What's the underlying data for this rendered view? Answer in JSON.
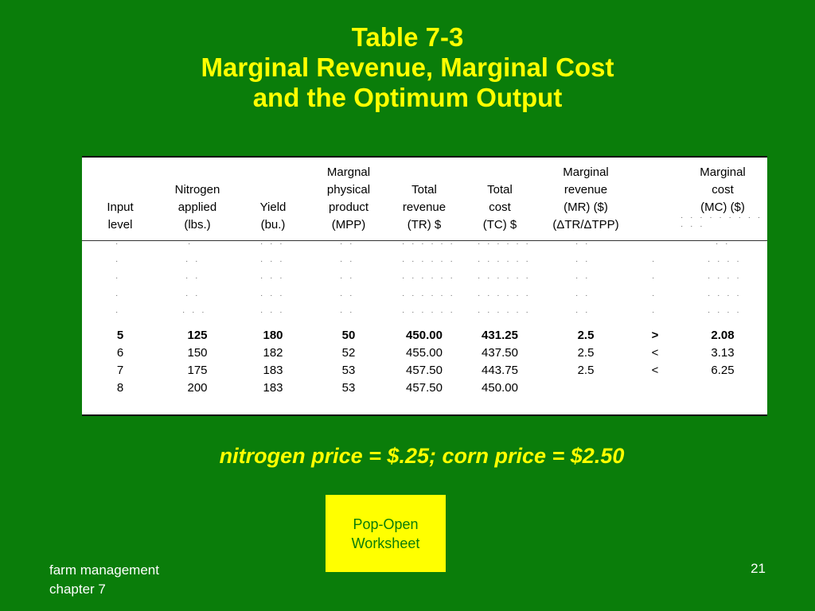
{
  "title": {
    "line1": "Table 7-3",
    "line2": "Marginal Revenue, Marginal Cost",
    "line3": "and the Optimum Output"
  },
  "table": {
    "headers": [
      "Input\nlevel",
      "Nitrogen\napplied\n(lbs.)",
      "Yield\n(bu.)",
      "Margnal\nphysical\nproduct\n(MPP)",
      "Total\nrevenue\n(TR) $",
      "Total\ncost\n(TC) $",
      "Marginal\nrevenue\n(MR) ($)\n(ΔTR/ΔTPP)",
      "",
      "Marginal\ncost\n(MC) ($)"
    ],
    "rows": [
      [
        "5",
        "125",
        "180",
        "50",
        "450.00",
        "431.25",
        "2.5",
        ">",
        "2.08"
      ],
      [
        "6",
        "150",
        "182",
        "52",
        "455.00",
        "437.50",
        "2.5",
        "<",
        "3.13"
      ],
      [
        "7",
        "175",
        "183",
        "53",
        "457.50",
        "443.75",
        "2.5",
        "<",
        "6.25"
      ],
      [
        "8",
        "200",
        "183",
        "53",
        "457.50",
        "450.00",
        "",
        "",
        ""
      ]
    ]
  },
  "note": "nitrogen price = $.25; corn price = $2.50",
  "button": {
    "label": "Pop-Open\nWorksheet"
  },
  "footer": {
    "line1": "farm management",
    "line2": "chapter 7"
  },
  "page_number": "21",
  "colors": {
    "background": "#0a7d0a",
    "title": "#ffff00",
    "button_bg": "#ffff00",
    "button_text": "#0a7d0a"
  }
}
